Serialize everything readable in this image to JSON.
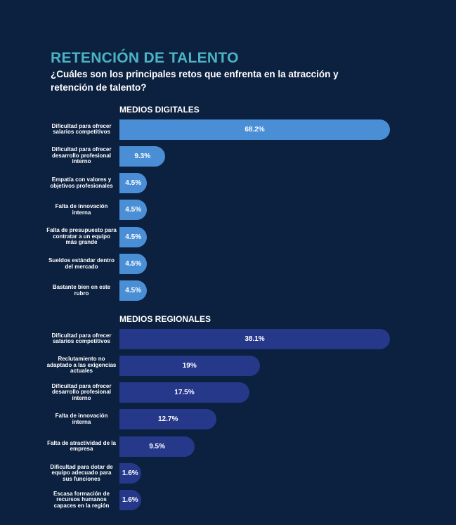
{
  "header": {
    "title": "RETENCIÓN DE TALENTO",
    "subtitle": "¿Cuáles son los principales retos que enfrenta en la atracción y retención de talento?"
  },
  "chart_data": [
    {
      "type": "bar",
      "orientation": "horizontal",
      "title": "MEDIOS DIGITALES",
      "color": "#4a8fd6",
      "categories": [
        "Dificultad para ofrecer salarios competitivos",
        "Dificultad para ofrecer desarrollo profesional interno",
        "Empatía con valores y objetivos profesionales",
        "Falta de innovación interna",
        "Falta de presupuesto para contratar a un equipo más grande",
        "Sueldos estándar dentro del mercado",
        "Bastante bien en este rubro"
      ],
      "values": [
        68.2,
        9.3,
        4.5,
        4.5,
        4.5,
        4.5,
        4.5
      ],
      "value_labels": [
        "68.2%",
        "9.3%",
        "4.5%",
        "4.5%",
        "4.5%",
        "4.5%",
        "4.5%"
      ]
    },
    {
      "type": "bar",
      "orientation": "horizontal",
      "title": "MEDIOS REGIONALES",
      "color": "#26388a",
      "categories": [
        "Dificultad para ofrecer salarios competitivos",
        "Reclutamiento no adaptado a las exigencias actuales",
        "Dificultad para ofrecer desarrollo profesional interno",
        "Falta de innovación interna",
        "Falta de atractividad de la empresa",
        "Dificultad para dotar de equipo adecuado para sus funciones",
        "Escasa formación de recursos humanos capaces en la región"
      ],
      "values": [
        38.1,
        19,
        17.5,
        12.7,
        9.5,
        1.6,
        1.6
      ],
      "value_labels": [
        "38.1%",
        "19%",
        "17.5%",
        "12.7%",
        "9.5%",
        "1.6%",
        "1.6%"
      ]
    }
  ]
}
